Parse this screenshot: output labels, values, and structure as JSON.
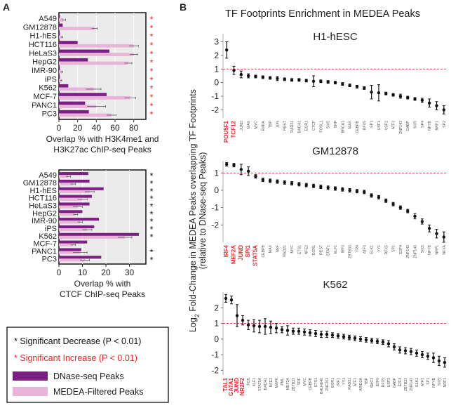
{
  "panel_a_label": "A",
  "panel_b_label": "B",
  "colors": {
    "dnase": "#7b1f82",
    "medea": "#e8b4d8",
    "sig_increase": "#e8282b",
    "sig_decrease": "#111111",
    "ref_line": "#e8282b"
  },
  "legend": {
    "decrease": "* Significant Decrease (P < 0.01)",
    "increase": "* Significant Increase (P < 0.01)",
    "dnase": "DNase-seq Peaks",
    "medea": "MEDEA-Filtered Peaks"
  },
  "panel_b_title": "TF Footprints Enrichment in MEDEA Peaks",
  "panel_b_ylabel_line1": "Log2 Fold-Change in MEDEA Peaks overlapping TF Footprints",
  "panel_b_ylabel_line2": "(relative to DNase-seq Peaks)",
  "chart_data": [
    {
      "type": "bar",
      "orientation": "horizontal",
      "categories": [
        "A549",
        "GM12878",
        "H1-hES",
        "HCT116",
        "HeLaS3",
        "HepG2",
        "IMR-90",
        "iPS",
        "K562",
        "MCF-7",
        "PANC1",
        "PC3"
      ],
      "series": [
        {
          "name": "DNase-seq Peaks",
          "values": [
            1,
            4,
            1,
            20,
            54,
            31,
            1,
            1,
            10,
            51,
            28,
            32
          ]
        },
        {
          "name": "MEDEA-Filtered Peaks",
          "values": [
            5,
            38,
            3,
            80,
            80,
            74,
            3,
            2,
            37,
            76,
            40,
            56
          ]
        }
      ],
      "errors": [
        2,
        3,
        1,
        5,
        4,
        4,
        1,
        1,
        8,
        6,
        10,
        5
      ],
      "significance": [
        "*",
        "*",
        "*",
        "*",
        "*",
        "*",
        "*",
        "*",
        "*",
        "*",
        "*",
        "*"
      ],
      "significance_color": "red",
      "xlabel": "Overlap % with H3K4me1 and H3K27ac ChIP-seq Peaks",
      "xticks": [
        0,
        20,
        40,
        60,
        80
      ],
      "xlim": [
        0,
        93
      ]
    },
    {
      "type": "bar",
      "orientation": "horizontal",
      "categories": [
        "A549",
        "GM12878",
        "H1-hES",
        "HCT116",
        "HeLaS3",
        "HepG2",
        "IMR-90",
        "iPS",
        "K562",
        "MCF-7",
        "PANC1",
        "PC3"
      ],
      "series": [
        {
          "name": "DNase-seq Peaks",
          "values": [
            12.5,
            13,
            19,
            14,
            13,
            10,
            17,
            15,
            34,
            12,
            9.5,
            18
          ]
        },
        {
          "name": "MEDEA-Filtered Peaks",
          "values": [
            4,
            6,
            13,
            10,
            8,
            7,
            9,
            12,
            28,
            6,
            9,
            11
          ]
        }
      ],
      "errors": [
        1,
        1,
        2,
        2,
        2,
        1,
        1,
        2,
        3,
        1,
        3,
        2
      ],
      "significance": [
        "*",
        "*",
        "*",
        "*",
        "*",
        "*",
        "*",
        "*",
        "*",
        "",
        "*",
        "*"
      ],
      "significance_color": "black",
      "xlabel": "Overlap % with CTCF ChIP-seq Peaks",
      "xticks": [
        0,
        10,
        20,
        30
      ],
      "xlim": [
        0,
        37
      ]
    },
    {
      "type": "scatter",
      "title": "H1-hESC",
      "ylim": [
        -2.6,
        3.6
      ],
      "yticks": [
        3,
        2,
        1,
        0,
        -1,
        -2
      ],
      "ref_line": 1,
      "highlight_count": 2,
      "labels": [
        "POU5F1",
        "TCF12",
        "JUND",
        "MAX",
        "MYC",
        "RXRA",
        "TBP",
        "JUN",
        "REST",
        "RAD21",
        "BACH1",
        "EGR1",
        "CTCF",
        "FOSL1",
        "SIX5",
        "SRF",
        "BRCA1",
        "MAX",
        "CEBPB",
        "RFX5",
        "SP1",
        "USF1",
        "USF2",
        "ATF3",
        "ZNF143",
        "GABP",
        "SIX5",
        "SP4",
        "NFYB",
        "NRF1",
        "SP2"
      ],
      "values": [
        2.4,
        0.9,
        0.6,
        0.5,
        0.45,
        0.4,
        0.35,
        0.3,
        0.25,
        0.2,
        0.2,
        0.15,
        0.1,
        0.1,
        0.05,
        0.0,
        -0.1,
        -0.2,
        -0.3,
        -0.4,
        -0.7,
        -0.75,
        -0.8,
        -0.9,
        -1.0,
        -1.1,
        -1.2,
        -1.3,
        -1.5,
        -1.7,
        -2.0
      ],
      "errors": [
        0.6,
        0.3,
        0.25,
        0.15,
        0.1,
        0.1,
        0.1,
        0.15,
        0.1,
        0.1,
        0.1,
        0.1,
        0.4,
        0.1,
        0.1,
        0.1,
        0.1,
        0.1,
        0.1,
        0.1,
        0.5,
        0.6,
        0.1,
        0.1,
        0.15,
        0.1,
        0.1,
        0.15,
        0.3,
        0.3,
        0.3
      ]
    },
    {
      "type": "scatter",
      "title": "GM12878",
      "ylim": [
        -3.0,
        1.7
      ],
      "yticks": [
        1,
        0,
        -1,
        -2
      ],
      "ref_line": 1,
      "highlight_count": 5,
      "labels": [
        "IRF4",
        "MEF2A",
        "JUND",
        "SPI1",
        "STAT5A",
        "CEBPB",
        "MAX",
        "SRF",
        "RAD21",
        "MYC",
        "ETS1",
        "NFE2",
        "EGR1",
        "REST",
        "STAT1",
        "ELF1",
        "IRF3",
        "ZBTB33",
        "TR4",
        "ATF3",
        "ELK1",
        "YY1",
        "RFX5",
        "SP1",
        "E2F4",
        "ZNF143",
        "ZNF143",
        "SIX5",
        "NFYB",
        "NRF1",
        "NFYA"
      ],
      "values": [
        1.5,
        1.45,
        1.2,
        1.1,
        0.8,
        0.6,
        0.55,
        0.5,
        0.45,
        0.4,
        0.35,
        0.3,
        0.25,
        0.2,
        0.15,
        0.1,
        0.05,
        0.0,
        -0.05,
        -0.1,
        -0.3,
        -0.4,
        -0.6,
        -0.8,
        -1.0,
        -1.2,
        -1.5,
        -1.8,
        -2.2,
        -2.5,
        -2.7
      ],
      "errors": [
        0.1,
        0.1,
        0.3,
        0.25,
        0.1,
        0.1,
        0.1,
        0.1,
        0.1,
        0.1,
        0.1,
        0.1,
        0.1,
        0.1,
        0.1,
        0.1,
        0.1,
        0.1,
        0.1,
        0.1,
        0.1,
        0.1,
        0.1,
        0.1,
        0.1,
        0.1,
        0.15,
        0.15,
        0.2,
        0.25,
        0.3
      ]
    },
    {
      "type": "scatter",
      "title": "K562",
      "ylim": [
        -2.3,
        3.0
      ],
      "yticks": [
        2,
        1,
        0,
        -1,
        -2
      ],
      "ref_line": 1,
      "highlight_count": 4,
      "labels": [
        "TAL1",
        "GATA1",
        "JUND",
        "NR2F2",
        "FOS",
        "KLF1",
        "STAT5A",
        "BACH1",
        "NFE2",
        "MAFK",
        "PML",
        "MEF2A",
        "ZBTB33",
        "SRF",
        "MYC",
        "CEBPB",
        "ETS1",
        "BHLHE40",
        "ZNF263",
        "EGR1",
        "IRF1",
        "YY1",
        "RAD21",
        "ATF1",
        "ARID3A",
        "TBP",
        "SMC3",
        "E2F6",
        "RFX5",
        "USF2",
        "GABP",
        "E2F4",
        "ZBTB33",
        "ZNF143",
        "ELK1",
        "ATF3",
        "SP1",
        "NFYB",
        "SIX5",
        "NRF1"
      ],
      "values": [
        2.6,
        2.5,
        1.5,
        1.2,
        0.9,
        0.85,
        0.8,
        0.8,
        0.75,
        0.7,
        0.6,
        0.55,
        0.5,
        0.5,
        0.45,
        0.4,
        0.35,
        0.3,
        0.3,
        0.25,
        0.2,
        0.15,
        0.1,
        0.05,
        0.0,
        -0.05,
        -0.1,
        -0.15,
        -0.2,
        -0.3,
        -0.5,
        -0.7,
        -0.75,
        -0.8,
        -0.9,
        -1.0,
        -1.1,
        -1.2,
        -1.4,
        -1.5
      ],
      "errors": [
        0.25,
        0.25,
        0.7,
        0.3,
        0.3,
        0.4,
        0.4,
        0.5,
        0.4,
        0.3,
        0.2,
        0.3,
        0.2,
        0.2,
        0.2,
        0.2,
        0.2,
        0.2,
        0.2,
        0.15,
        0.15,
        0.15,
        0.15,
        0.15,
        0.15,
        0.15,
        0.15,
        0.15,
        0.15,
        0.2,
        0.2,
        0.2,
        0.2,
        0.2,
        0.2,
        0.2,
        0.2,
        0.3,
        0.3,
        0.3
      ]
    }
  ]
}
